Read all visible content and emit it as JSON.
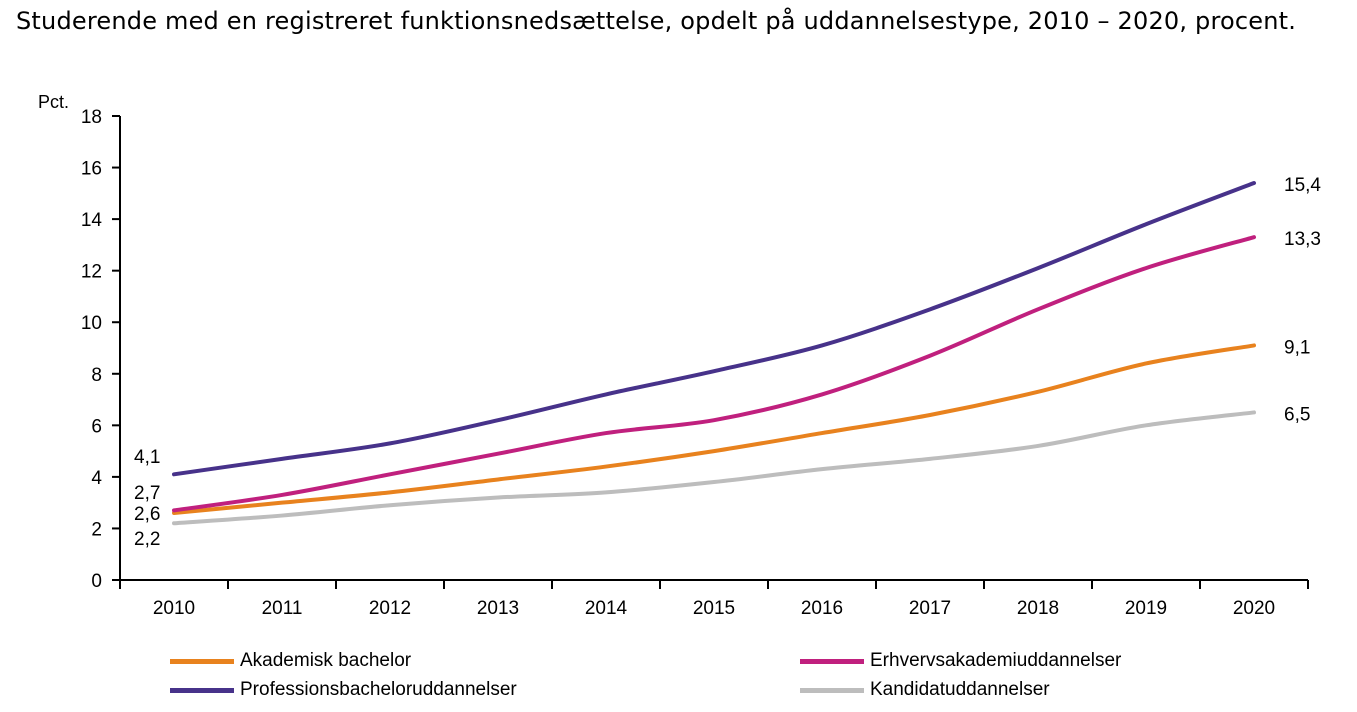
{
  "title": "Studerende med en registreret funktionsnedsættelse, opdelt på uddannelsestype, 2010 – 2020, procent.",
  "chart_data": {
    "type": "line",
    "ylabel": "Pct.",
    "ylim": [
      0,
      18
    ],
    "yticks": [
      "0",
      "2",
      "4",
      "6",
      "8",
      "10",
      "12",
      "14",
      "16",
      "18"
    ],
    "categories": [
      "2010",
      "2011",
      "2012",
      "2013",
      "2014",
      "2015",
      "2016",
      "2017",
      "2018",
      "2019",
      "2020"
    ],
    "grid": false,
    "legend_position": "bottom",
    "series": [
      {
        "name": "Akademisk bachelor",
        "color": "#E8821E",
        "values": [
          2.6,
          3.0,
          3.4,
          3.9,
          4.4,
          5.0,
          5.7,
          6.4,
          7.3,
          8.4,
          9.1
        ],
        "start_label": "2,6",
        "end_label": "9,1"
      },
      {
        "name": "Erhvervsakademiuddannelser",
        "color": "#C0207E",
        "values": [
          2.7,
          3.3,
          4.1,
          4.9,
          5.7,
          6.2,
          7.2,
          8.7,
          10.5,
          12.1,
          13.3
        ],
        "start_label": "2,7",
        "end_label": "13,3"
      },
      {
        "name": "Professionsbacheloruddannelser",
        "color": "#47328A",
        "values": [
          4.1,
          4.7,
          5.3,
          6.2,
          7.2,
          8.1,
          9.1,
          10.5,
          12.1,
          13.8,
          15.4
        ],
        "start_label": "4,1",
        "end_label": "15,4"
      },
      {
        "name": "Kandidatuddannelser",
        "color": "#BDBDBD",
        "values": [
          2.2,
          2.5,
          2.9,
          3.2,
          3.4,
          3.8,
          4.3,
          4.7,
          5.2,
          6.0,
          6.5
        ],
        "start_label": "2,2",
        "end_label": "6,5"
      }
    ]
  }
}
